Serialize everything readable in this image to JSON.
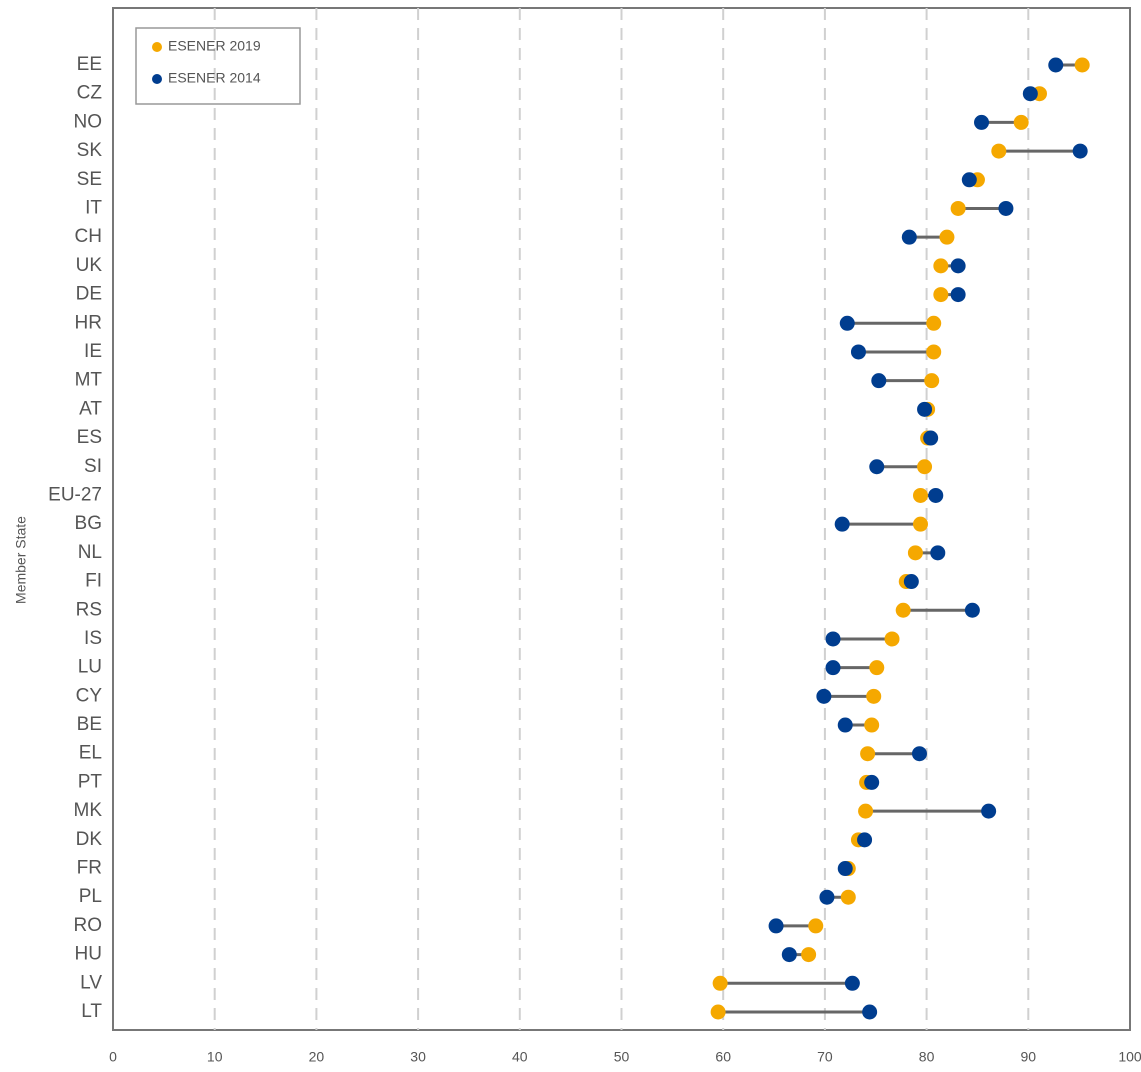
{
  "chart_data": {
    "type": "dumbbell",
    "y_axis_label": "Member State",
    "categories": [
      "EE",
      "CZ",
      "NO",
      "SK",
      "SE",
      "IT",
      "CH",
      "UK",
      "DE",
      "HR",
      "IE",
      "MT",
      "AT",
      "ES",
      "SI",
      "EU-27",
      "BG",
      "NL",
      "FI",
      "RS",
      "IS",
      "LU",
      "CY",
      "BE",
      "EL",
      "PT",
      "MK",
      "DK",
      "FR",
      "PL",
      "RO",
      "HU",
      "LV",
      "LT"
    ],
    "series": [
      {
        "name": "ESENER 2019",
        "color": "#f5a800",
        "values": [
          95.3,
          91.1,
          89.3,
          87.1,
          85.0,
          83.1,
          82.0,
          81.4,
          81.4,
          80.7,
          80.7,
          80.5,
          80.1,
          80.1,
          79.8,
          79.4,
          79.4,
          78.9,
          78.0,
          77.7,
          76.6,
          75.1,
          74.8,
          74.6,
          74.2,
          74.1,
          74.0,
          73.3,
          72.3,
          72.3,
          69.1,
          68.4,
          59.7,
          59.5
        ]
      },
      {
        "name": "ESENER 2014",
        "color": "#003d8f",
        "values": [
          92.7,
          90.2,
          85.4,
          95.1,
          84.2,
          87.8,
          78.3,
          83.1,
          83.1,
          72.2,
          73.3,
          75.3,
          79.8,
          80.4,
          75.1,
          80.9,
          71.7,
          81.1,
          78.5,
          84.5,
          70.8,
          70.8,
          69.9,
          72.0,
          79.3,
          74.6,
          86.1,
          73.9,
          72.0,
          70.2,
          65.2,
          66.5,
          72.7,
          74.4
        ]
      }
    ],
    "connector_color": "#666666",
    "xlim": [
      0,
      100
    ],
    "xticks": [
      0,
      10,
      20,
      30,
      40,
      50,
      60,
      70,
      80,
      90,
      100
    ],
    "grid": true,
    "legend": "top-left"
  }
}
